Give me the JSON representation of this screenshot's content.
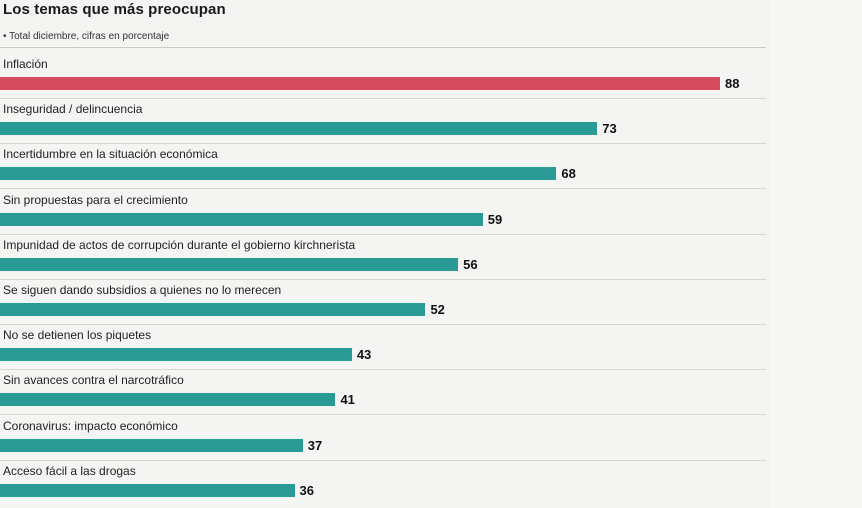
{
  "chart_data": {
    "type": "bar",
    "orientation": "horizontal",
    "title": "Los temas que más preocupan",
    "subtitle": "• Total diciembre, cifras en porcentaje",
    "categories": [
      "Inflación",
      "Inseguridad / delincuencia",
      "Incertidumbre en la situación económica",
      "Sin propuestas para el crecimiento",
      "Impunidad de actos de corrupción durante el gobierno kirchnerista",
      "Se siguen dando subsidios a quienes no lo merecen",
      "No se detienen los  piquetes",
      "Sin avances contra el narcotráfico",
      "Coronavirus: impacto económico",
      "Acceso fácil a las drogas"
    ],
    "values": [
      88,
      73,
      68,
      59,
      56,
      52,
      43,
      41,
      37,
      36
    ],
    "highlight_color": "#d64a5f",
    "bar_color": "#2a9a94",
    "xlim": [
      0,
      100
    ],
    "grid": false,
    "legend": "none"
  }
}
